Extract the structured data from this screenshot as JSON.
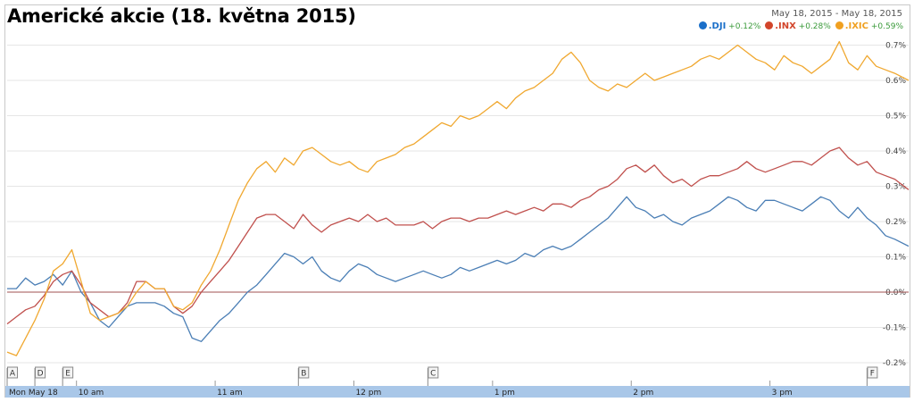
{
  "title": "Americké akcie (18. května 2015)",
  "date_range": "May 18, 2015  -  May 18, 2015",
  "colors": {
    "dji": "#4a7eb5",
    "inx": "#c0504d",
    "ixic": "#f0a830",
    "axis_bar": "#a9c7e8",
    "zero_line": "#a05050",
    "grid": "#e6e6e6"
  },
  "chart_data": {
    "type": "line",
    "title": "Americké akcie (18. května 2015)",
    "xlabel": "",
    "ylabel": "",
    "y_unit": "%",
    "ylim": [
      -0.22,
      0.72
    ],
    "yticks": [
      -0.2,
      -0.1,
      0.0,
      0.1,
      0.2,
      0.3,
      0.4,
      0.5,
      0.6,
      0.7
    ],
    "ytick_labels": [
      "-0.2%",
      "-0.1%",
      "0.0%",
      "0.1%",
      "0.2%",
      "0.3%",
      "0.4%",
      "0.5%",
      "0.6%",
      "0.7%"
    ],
    "x_range": [
      "09:30",
      "16:00"
    ],
    "xtick_labels": [
      {
        "time": "09:30",
        "label": "Mon May 18"
      },
      {
        "time": "10:00",
        "label": "10 am"
      },
      {
        "time": "11:00",
        "label": "11 am"
      },
      {
        "time": "12:00",
        "label": "12 pm"
      },
      {
        "time": "13:00",
        "label": "1 pm"
      },
      {
        "time": "14:00",
        "label": "2 pm"
      },
      {
        "time": "15:00",
        "label": "3 pm"
      }
    ],
    "annotations": [
      {
        "label": "A",
        "time": "09:30"
      },
      {
        "label": "D",
        "time": "09:42"
      },
      {
        "label": "E",
        "time": "09:54"
      },
      {
        "label": "B",
        "time": "11:36"
      },
      {
        "label": "C",
        "time": "12:32"
      },
      {
        "label": "F",
        "time": "15:42"
      }
    ],
    "grid": true,
    "legend_position": "top-right",
    "series": [
      {
        "name": ".DJI",
        "change": "+0.12%",
        "color": "#4a7eb5",
        "x": [
          "09:30",
          "09:34",
          "09:38",
          "09:42",
          "09:46",
          "09:50",
          "09:54",
          "09:58",
          "10:02",
          "10:06",
          "10:10",
          "10:14",
          "10:18",
          "10:22",
          "10:26",
          "10:30",
          "10:34",
          "10:38",
          "10:42",
          "10:46",
          "10:50",
          "10:54",
          "10:58",
          "11:02",
          "11:06",
          "11:10",
          "11:14",
          "11:18",
          "11:22",
          "11:26",
          "11:30",
          "11:34",
          "11:38",
          "11:42",
          "11:46",
          "11:50",
          "11:54",
          "11:58",
          "12:02",
          "12:06",
          "12:10",
          "12:14",
          "12:18",
          "12:22",
          "12:26",
          "12:30",
          "12:34",
          "12:38",
          "12:42",
          "12:46",
          "12:50",
          "12:54",
          "12:58",
          "13:02",
          "13:06",
          "13:10",
          "13:14",
          "13:18",
          "13:22",
          "13:26",
          "13:30",
          "13:34",
          "13:38",
          "13:42",
          "13:46",
          "13:50",
          "13:54",
          "13:58",
          "14:02",
          "14:06",
          "14:10",
          "14:14",
          "14:18",
          "14:22",
          "14:26",
          "14:30",
          "14:34",
          "14:38",
          "14:42",
          "14:46",
          "14:50",
          "14:54",
          "14:58",
          "15:02",
          "15:06",
          "15:10",
          "15:14",
          "15:18",
          "15:22",
          "15:26",
          "15:30",
          "15:34",
          "15:38",
          "15:42",
          "15:46",
          "15:50",
          "15:54",
          "16:00"
        ],
        "values": [
          0.01,
          0.01,
          0.04,
          0.02,
          0.03,
          0.05,
          0.02,
          0.06,
          0.0,
          -0.03,
          -0.08,
          -0.1,
          -0.07,
          -0.04,
          -0.03,
          -0.03,
          -0.03,
          -0.04,
          -0.06,
          -0.07,
          -0.13,
          -0.14,
          -0.11,
          -0.08,
          -0.06,
          -0.03,
          0.0,
          0.02,
          0.05,
          0.08,
          0.11,
          0.1,
          0.08,
          0.1,
          0.06,
          0.04,
          0.03,
          0.06,
          0.08,
          0.07,
          0.05,
          0.04,
          0.03,
          0.04,
          0.05,
          0.06,
          0.05,
          0.04,
          0.05,
          0.07,
          0.06,
          0.07,
          0.08,
          0.09,
          0.08,
          0.09,
          0.11,
          0.1,
          0.12,
          0.13,
          0.12,
          0.13,
          0.15,
          0.17,
          0.19,
          0.21,
          0.24,
          0.27,
          0.24,
          0.23,
          0.21,
          0.22,
          0.2,
          0.19,
          0.21,
          0.22,
          0.23,
          0.25,
          0.27,
          0.26,
          0.24,
          0.23,
          0.26,
          0.26,
          0.25,
          0.24,
          0.23,
          0.25,
          0.27,
          0.26,
          0.23,
          0.21,
          0.24,
          0.21,
          0.19,
          0.16,
          0.15,
          0.13
        ]
      },
      {
        "name": ".INX",
        "change": "+0.28%",
        "color": "#c0504d",
        "x": [
          "09:30",
          "09:34",
          "09:38",
          "09:42",
          "09:46",
          "09:50",
          "09:54",
          "09:58",
          "10:02",
          "10:06",
          "10:10",
          "10:14",
          "10:18",
          "10:22",
          "10:26",
          "10:30",
          "10:34",
          "10:38",
          "10:42",
          "10:46",
          "10:50",
          "10:54",
          "10:58",
          "11:02",
          "11:06",
          "11:10",
          "11:14",
          "11:18",
          "11:22",
          "11:26",
          "11:30",
          "11:34",
          "11:38",
          "11:42",
          "11:46",
          "11:50",
          "11:54",
          "11:58",
          "12:02",
          "12:06",
          "12:10",
          "12:14",
          "12:18",
          "12:22",
          "12:26",
          "12:30",
          "12:34",
          "12:38",
          "12:42",
          "12:46",
          "12:50",
          "12:54",
          "12:58",
          "13:02",
          "13:06",
          "13:10",
          "13:14",
          "13:18",
          "13:22",
          "13:26",
          "13:30",
          "13:34",
          "13:38",
          "13:42",
          "13:46",
          "13:50",
          "13:54",
          "13:58",
          "14:02",
          "14:06",
          "14:10",
          "14:14",
          "14:18",
          "14:22",
          "14:26",
          "14:30",
          "14:34",
          "14:38",
          "14:42",
          "14:46",
          "14:50",
          "14:54",
          "14:58",
          "15:02",
          "15:06",
          "15:10",
          "15:14",
          "15:18",
          "15:22",
          "15:26",
          "15:30",
          "15:34",
          "15:38",
          "15:42",
          "15:46",
          "15:50",
          "15:54",
          "16:00"
        ],
        "values": [
          -0.09,
          -0.07,
          -0.05,
          -0.04,
          -0.01,
          0.03,
          0.05,
          0.06,
          0.02,
          -0.03,
          -0.05,
          -0.07,
          -0.06,
          -0.03,
          0.03,
          0.03,
          0.01,
          0.01,
          -0.04,
          -0.06,
          -0.04,
          0.0,
          0.03,
          0.06,
          0.09,
          0.13,
          0.17,
          0.21,
          0.22,
          0.22,
          0.2,
          0.18,
          0.22,
          0.19,
          0.17,
          0.19,
          0.2,
          0.21,
          0.2,
          0.22,
          0.2,
          0.21,
          0.19,
          0.19,
          0.19,
          0.2,
          0.18,
          0.2,
          0.21,
          0.21,
          0.2,
          0.21,
          0.21,
          0.22,
          0.23,
          0.22,
          0.23,
          0.24,
          0.23,
          0.25,
          0.25,
          0.24,
          0.26,
          0.27,
          0.29,
          0.3,
          0.32,
          0.35,
          0.36,
          0.34,
          0.36,
          0.33,
          0.31,
          0.32,
          0.3,
          0.32,
          0.33,
          0.33,
          0.34,
          0.35,
          0.37,
          0.35,
          0.34,
          0.35,
          0.36,
          0.37,
          0.37,
          0.36,
          0.38,
          0.4,
          0.41,
          0.38,
          0.36,
          0.37,
          0.34,
          0.33,
          0.32,
          0.29
        ]
      },
      {
        "name": ".IXIC",
        "change": "+0.59%",
        "color": "#f0a830",
        "x": [
          "09:30",
          "09:34",
          "09:38",
          "09:42",
          "09:46",
          "09:50",
          "09:54",
          "09:58",
          "10:02",
          "10:06",
          "10:10",
          "10:14",
          "10:18",
          "10:22",
          "10:26",
          "10:30",
          "10:34",
          "10:38",
          "10:42",
          "10:46",
          "10:50",
          "10:54",
          "10:58",
          "11:02",
          "11:06",
          "11:10",
          "11:14",
          "11:18",
          "11:22",
          "11:26",
          "11:30",
          "11:34",
          "11:38",
          "11:42",
          "11:46",
          "11:50",
          "11:54",
          "11:58",
          "12:02",
          "12:06",
          "12:10",
          "12:14",
          "12:18",
          "12:22",
          "12:26",
          "12:30",
          "12:34",
          "12:38",
          "12:42",
          "12:46",
          "12:50",
          "12:54",
          "12:58",
          "13:02",
          "13:06",
          "13:10",
          "13:14",
          "13:18",
          "13:22",
          "13:26",
          "13:30",
          "13:34",
          "13:38",
          "13:42",
          "13:46",
          "13:50",
          "13:54",
          "13:58",
          "14:02",
          "14:06",
          "14:10",
          "14:14",
          "14:18",
          "14:22",
          "14:26",
          "14:30",
          "14:34",
          "14:38",
          "14:42",
          "14:46",
          "14:50",
          "14:54",
          "14:58",
          "15:02",
          "15:06",
          "15:10",
          "15:14",
          "15:18",
          "15:22",
          "15:26",
          "15:30",
          "15:34",
          "15:38",
          "15:42",
          "15:46",
          "15:50",
          "15:54",
          "16:00"
        ],
        "values": [
          -0.17,
          -0.18,
          -0.13,
          -0.08,
          -0.02,
          0.06,
          0.08,
          0.12,
          0.03,
          -0.06,
          -0.08,
          -0.07,
          -0.06,
          -0.04,
          0.0,
          0.03,
          0.01,
          0.01,
          -0.04,
          -0.05,
          -0.03,
          0.02,
          0.06,
          0.12,
          0.19,
          0.26,
          0.31,
          0.35,
          0.37,
          0.34,
          0.38,
          0.36,
          0.4,
          0.41,
          0.39,
          0.37,
          0.36,
          0.37,
          0.35,
          0.34,
          0.37,
          0.38,
          0.39,
          0.41,
          0.42,
          0.44,
          0.46,
          0.48,
          0.47,
          0.5,
          0.49,
          0.5,
          0.52,
          0.54,
          0.52,
          0.55,
          0.57,
          0.58,
          0.6,
          0.62,
          0.66,
          0.68,
          0.65,
          0.6,
          0.58,
          0.57,
          0.59,
          0.58,
          0.6,
          0.62,
          0.6,
          0.61,
          0.62,
          0.63,
          0.64,
          0.66,
          0.67,
          0.66,
          0.68,
          0.7,
          0.68,
          0.66,
          0.65,
          0.63,
          0.67,
          0.65,
          0.64,
          0.62,
          0.64,
          0.66,
          0.71,
          0.65,
          0.63,
          0.67,
          0.64,
          0.63,
          0.62,
          0.6
        ]
      }
    ]
  }
}
